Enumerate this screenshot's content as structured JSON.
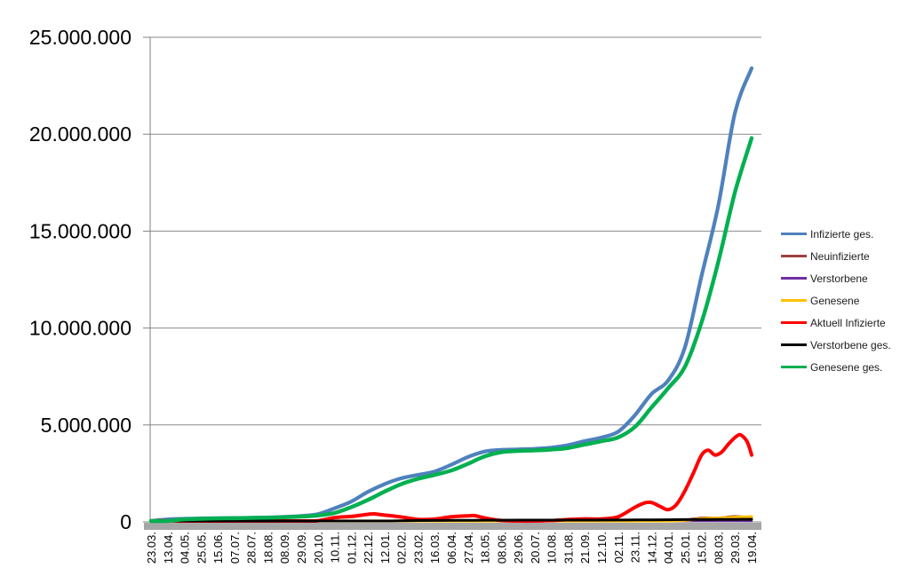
{
  "chart_data": {
    "type": "line",
    "title": "",
    "grid": true,
    "legend_position": "right",
    "value_unit": "millions",
    "x_axis": {
      "tick_interval_days": 21,
      "labels": [
        "23.03.",
        "13.04.",
        "04.05.",
        "25.05.",
        "15.06.",
        "07.07.",
        "28.07.",
        "18.08.",
        "08.09.",
        "29.09.",
        "20.10.",
        "10.11.",
        "01.12.",
        "22.12.",
        "12.01.",
        "02.02.",
        "23.02.",
        "16.03.",
        "06.04.",
        "27.04.",
        "18.05.",
        "08.06.",
        "29.06.",
        "20.07.",
        "10.08.",
        "31.08.",
        "21.09.",
        "12.10.",
        "02.11.",
        "23.11.",
        "14.12.",
        "04.01.",
        "25.01.",
        "15.02.",
        "08.03.",
        "29.03.",
        "19.04."
      ]
    },
    "y_axis": {
      "ylim_millions": [
        0,
        25
      ],
      "tick_values_millions": [
        0,
        5,
        10,
        15,
        20,
        25
      ],
      "tick_labels": [
        "0",
        "5.000.000",
        "10.000.000",
        "15.000.000",
        "20.000.000",
        "25.000.000"
      ]
    },
    "colors": {
      "gridline": "#898989",
      "axis": "#808080",
      "axis_shadow_band": "#a6a6a6",
      "axis_text": "#000000"
    },
    "series": [
      {
        "name": "Infizierte ges.",
        "color": "#4F81BD",
        "width": 4.2,
        "points": [
          [
            0,
            0.03
          ],
          [
            1,
            0.13
          ],
          [
            2,
            0.16
          ],
          [
            3,
            0.18
          ],
          [
            4,
            0.19
          ],
          [
            5,
            0.2
          ],
          [
            6,
            0.21
          ],
          [
            7,
            0.23
          ],
          [
            8,
            0.26
          ],
          [
            9,
            0.3
          ],
          [
            10,
            0.4
          ],
          [
            11,
            0.7
          ],
          [
            12,
            1.05
          ],
          [
            13,
            1.55
          ],
          [
            14,
            1.95
          ],
          [
            15,
            2.25
          ],
          [
            16,
            2.42
          ],
          [
            17,
            2.6
          ],
          [
            18,
            2.95
          ],
          [
            19,
            3.35
          ],
          [
            20,
            3.63
          ],
          [
            21,
            3.72
          ],
          [
            22,
            3.74
          ],
          [
            23,
            3.77
          ],
          [
            24,
            3.83
          ],
          [
            25,
            3.96
          ],
          [
            26,
            4.17
          ],
          [
            27,
            4.35
          ],
          [
            28,
            4.65
          ],
          [
            29,
            5.5
          ],
          [
            30,
            6.6
          ],
          [
            31,
            7.3
          ],
          [
            32,
            9.0
          ],
          [
            33,
            12.7
          ],
          [
            34,
            16.3
          ],
          [
            35,
            21.1
          ],
          [
            36,
            23.4
          ]
        ]
      },
      {
        "name": "Neuinfizierte",
        "color": "#9E413E",
        "width": 2.6,
        "points": [
          [
            0,
            0.004
          ],
          [
            1,
            0.004
          ],
          [
            2,
            0.001
          ],
          [
            4,
            0.001
          ],
          [
            8,
            0.001
          ],
          [
            9,
            0.002
          ],
          [
            10,
            0.007
          ],
          [
            11,
            0.018
          ],
          [
            12,
            0.018
          ],
          [
            13,
            0.025
          ],
          [
            14,
            0.02
          ],
          [
            15,
            0.012
          ],
          [
            16,
            0.008
          ],
          [
            17,
            0.012
          ],
          [
            18,
            0.02
          ],
          [
            19,
            0.02
          ],
          [
            20,
            0.01
          ],
          [
            21,
            0.003
          ],
          [
            22,
            0.001
          ],
          [
            24,
            0.002
          ],
          [
            25,
            0.008
          ],
          [
            26,
            0.008
          ],
          [
            27,
            0.007
          ],
          [
            28,
            0.015
          ],
          [
            29,
            0.045
          ],
          [
            30,
            0.05
          ],
          [
            31,
            0.04
          ],
          [
            32,
            0.1
          ],
          [
            33,
            0.21
          ],
          [
            34,
            0.2
          ],
          [
            35,
            0.29
          ],
          [
            36,
            0.2
          ]
        ]
      },
      {
        "name": "Verstorbene",
        "color": "#7030A0",
        "width": 2.4,
        "points": [
          [
            0,
            0.0002
          ],
          [
            5,
            0.0001
          ],
          [
            10,
            0.0002
          ],
          [
            13,
            0.0007
          ],
          [
            14,
            0.0009
          ],
          [
            16,
            0.0006
          ],
          [
            18,
            0.0003
          ],
          [
            20,
            0.0002
          ],
          [
            24,
            0.0001
          ],
          [
            28,
            0.0002
          ],
          [
            30,
            0.0004
          ],
          [
            32,
            0.0002
          ],
          [
            34,
            0.0003
          ],
          [
            36,
            0.0002
          ]
        ]
      },
      {
        "name": "Genesene",
        "color": "#FFC000",
        "width": 3.2,
        "points": [
          [
            0,
            0.002
          ],
          [
            1,
            0.004
          ],
          [
            2,
            0.004
          ],
          [
            3,
            0.002
          ],
          [
            4,
            0.001
          ],
          [
            9,
            0.002
          ],
          [
            10,
            0.005
          ],
          [
            11,
            0.015
          ],
          [
            12,
            0.019
          ],
          [
            13,
            0.022
          ],
          [
            14,
            0.021
          ],
          [
            15,
            0.015
          ],
          [
            16,
            0.009
          ],
          [
            17,
            0.01
          ],
          [
            18,
            0.014
          ],
          [
            19,
            0.017
          ],
          [
            20,
            0.014
          ],
          [
            21,
            0.006
          ],
          [
            22,
            0.002
          ],
          [
            24,
            0.003
          ],
          [
            25,
            0.006
          ],
          [
            26,
            0.008
          ],
          [
            27,
            0.008
          ],
          [
            28,
            0.012
          ],
          [
            29,
            0.03
          ],
          [
            30,
            0.05
          ],
          [
            31,
            0.05
          ],
          [
            32,
            0.08
          ],
          [
            33,
            0.16
          ],
          [
            34,
            0.2
          ],
          [
            35,
            0.24
          ],
          [
            36,
            0.27
          ]
        ]
      },
      {
        "name": "Aktuell Infizierte",
        "color": "#FF0000",
        "width": 4,
        "points": [
          [
            0,
            0.02
          ],
          [
            0.7,
            0.065
          ],
          [
            1.5,
            0.045
          ],
          [
            2,
            0.022
          ],
          [
            3,
            0.012
          ],
          [
            4,
            0.007
          ],
          [
            5,
            0.005
          ],
          [
            6,
            0.007
          ],
          [
            7,
            0.011
          ],
          [
            8,
            0.017
          ],
          [
            9,
            0.024
          ],
          [
            10,
            0.06
          ],
          [
            11,
            0.22
          ],
          [
            12,
            0.28
          ],
          [
            13,
            0.39
          ],
          [
            13.4,
            0.41
          ],
          [
            14,
            0.35
          ],
          [
            15,
            0.25
          ],
          [
            16,
            0.13
          ],
          [
            17,
            0.14
          ],
          [
            18,
            0.26
          ],
          [
            19,
            0.31
          ],
          [
            19.4,
            0.32
          ],
          [
            20,
            0.2
          ],
          [
            21,
            0.07
          ],
          [
            22,
            0.035
          ],
          [
            23,
            0.04
          ],
          [
            24,
            0.07
          ],
          [
            25,
            0.12
          ],
          [
            26,
            0.155
          ],
          [
            27,
            0.15
          ],
          [
            28,
            0.26
          ],
          [
            29,
            0.75
          ],
          [
            29.6,
            0.98
          ],
          [
            30,
            1.0
          ],
          [
            30.5,
            0.8
          ],
          [
            31,
            0.63
          ],
          [
            31.5,
            0.9
          ],
          [
            32,
            1.6
          ],
          [
            32.5,
            2.5
          ],
          [
            33,
            3.45
          ],
          [
            33.4,
            3.7
          ],
          [
            33.8,
            3.45
          ],
          [
            34.2,
            3.6
          ],
          [
            34.6,
            4.0
          ],
          [
            35,
            4.35
          ],
          [
            35.3,
            4.5
          ],
          [
            35.6,
            4.3
          ],
          [
            35.8,
            4.0
          ],
          [
            36,
            3.45
          ]
        ]
      },
      {
        "name": "Verstorbene ges.",
        "color": "#000000",
        "width": 3,
        "points": [
          [
            0,
            0.001
          ],
          [
            2,
            0.007
          ],
          [
            4,
            0.009
          ],
          [
            8,
            0.0095
          ],
          [
            10,
            0.011
          ],
          [
            12,
            0.017
          ],
          [
            13,
            0.027
          ],
          [
            14,
            0.043
          ],
          [
            15,
            0.058
          ],
          [
            16,
            0.068
          ],
          [
            17,
            0.074
          ],
          [
            18,
            0.077
          ],
          [
            19,
            0.082
          ],
          [
            20,
            0.086
          ],
          [
            22,
            0.09
          ],
          [
            24,
            0.092
          ],
          [
            26,
            0.093
          ],
          [
            28,
            0.096
          ],
          [
            29,
            0.099
          ],
          [
            30,
            0.105
          ],
          [
            31,
            0.112
          ],
          [
            32,
            0.117
          ],
          [
            33,
            0.12
          ],
          [
            34,
            0.124
          ],
          [
            35,
            0.128
          ],
          [
            36,
            0.132
          ]
        ]
      },
      {
        "name": "Genesene ges.",
        "color": "#00B050",
        "width": 4.4,
        "points": [
          [
            0,
            0.005
          ],
          [
            1,
            0.05
          ],
          [
            2,
            0.13
          ],
          [
            3,
            0.16
          ],
          [
            4,
            0.18
          ],
          [
            5,
            0.19
          ],
          [
            6,
            0.2
          ],
          [
            7,
            0.215
          ],
          [
            8,
            0.24
          ],
          [
            9,
            0.27
          ],
          [
            10,
            0.33
          ],
          [
            11,
            0.46
          ],
          [
            12,
            0.76
          ],
          [
            13,
            1.13
          ],
          [
            14,
            1.56
          ],
          [
            15,
            1.95
          ],
          [
            16,
            2.22
          ],
          [
            17,
            2.42
          ],
          [
            18,
            2.65
          ],
          [
            19,
            3.0
          ],
          [
            20,
            3.38
          ],
          [
            21,
            3.6
          ],
          [
            22,
            3.66
          ],
          [
            23,
            3.69
          ],
          [
            24,
            3.73
          ],
          [
            25,
            3.81
          ],
          [
            26,
            3.99
          ],
          [
            27,
            4.16
          ],
          [
            28,
            4.36
          ],
          [
            29,
            4.9
          ],
          [
            30,
            5.9
          ],
          [
            31,
            6.9
          ],
          [
            32,
            8.0
          ],
          [
            33,
            10.3
          ],
          [
            34,
            13.4
          ],
          [
            35,
            17.0
          ],
          [
            36,
            19.8
          ]
        ]
      }
    ]
  }
}
